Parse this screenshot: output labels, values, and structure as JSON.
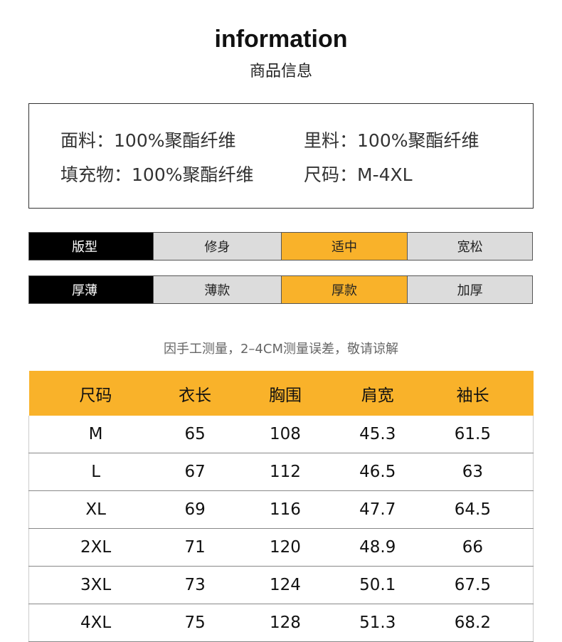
{
  "header": {
    "title": "information",
    "subtitle": "商品信息"
  },
  "specs": [
    {
      "label": "面料：",
      "value": "100%聚酯纤维"
    },
    {
      "label": "里料：",
      "value": "100%聚酯纤维"
    },
    {
      "label": "填充物：",
      "value": "100%聚酯纤维"
    },
    {
      "label": "尺码：",
      "value": "M-4XL"
    }
  ],
  "attributes": [
    {
      "label": "版型",
      "options": [
        "修身",
        "适中",
        "宽松"
      ]
    },
    {
      "label": "厚薄",
      "options": [
        "薄款",
        "厚款",
        "加厚"
      ]
    }
  ],
  "note": "因手工测量，2–4CM测量误差，敬请谅解",
  "table": {
    "header": [
      "尺码",
      "衣长",
      "胸围",
      "肩宽",
      "袖长"
    ],
    "rows": [
      [
        "M",
        65,
        108,
        45.3,
        61.5
      ],
      [
        "L",
        67,
        112,
        46.5,
        63
      ],
      [
        "XL",
        69,
        116,
        47.7,
        64.5
      ],
      [
        "2XL",
        71,
        120,
        48.9,
        66
      ],
      [
        "3XL",
        73,
        124,
        50.1,
        67.5
      ],
      [
        "4XL",
        75,
        128,
        51.3,
        68.2
      ]
    ]
  }
}
